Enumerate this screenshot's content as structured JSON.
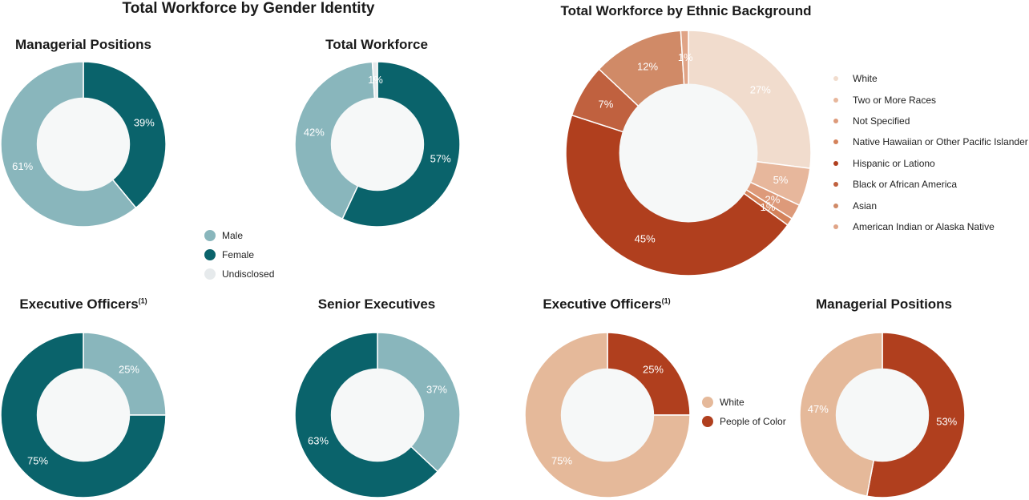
{
  "colors": {
    "male": "#89b6bc",
    "female": "#0a636b",
    "undisclosed": "#e6eaec",
    "white": "#e5b99a",
    "poc": "#b03f1e",
    "hole": "#f6f8f8"
  },
  "headings": {
    "gender": "Total Workforce by Gender Identity",
    "ethnic": "Total Workforce by Ethnic Background"
  },
  "legends": {
    "gender": [
      {
        "label": "Male",
        "color": "#89b6bc"
      },
      {
        "label": "Female",
        "color": "#0a636b"
      },
      {
        "label": "Undisclosed",
        "color": "#e6eaec"
      }
    ],
    "ethnic": [
      {
        "label": "White",
        "color": "#f1dccd"
      },
      {
        "label": "Two or More Races",
        "color": "#e7b79c"
      },
      {
        "label": "Not Specified",
        "color": "#dd9a7a"
      },
      {
        "label": "Native Hawaiian or Other Pacific Islander",
        "color": "#d4825a"
      },
      {
        "label": "Hispanic or Lationo",
        "color": "#b03f1e"
      },
      {
        "label": "Black or African America",
        "color": "#c0613f"
      },
      {
        "label": "Asian",
        "color": "#d08a67"
      },
      {
        "label": "American Indian or Alaska Native",
        "color": "#e0a487"
      }
    ],
    "race": [
      {
        "label": "White",
        "color": "#e5b99a"
      },
      {
        "label": "People of Color",
        "color": "#b03f1e"
      }
    ]
  },
  "chart_data": [
    {
      "id": "gender-managerial",
      "type": "pie",
      "title": "Managerial Positions",
      "footnote": "",
      "slices": [
        {
          "name": "Female",
          "value": 39,
          "label": "39%",
          "color": "#0a636b",
          "text_color": "#ffffff"
        },
        {
          "name": "Male",
          "value": 61,
          "label": "61%",
          "color": "#89b6bc",
          "text_color": "#ffffff"
        }
      ]
    },
    {
      "id": "gender-total",
      "type": "pie",
      "title": "Total Workforce",
      "footnote": "",
      "slices": [
        {
          "name": "Female",
          "value": 57,
          "label": "57%",
          "color": "#0a636b",
          "text_color": "#ffffff"
        },
        {
          "name": "Male",
          "value": 42,
          "label": "42%",
          "color": "#89b6bc",
          "text_color": "#ffffff"
        },
        {
          "name": "Undisclosed",
          "value": 1,
          "label": "1%",
          "color": "#e6eaec",
          "text_color": "#ffffff"
        }
      ]
    },
    {
      "id": "gender-exec-officers",
      "type": "pie",
      "title": "Executive Officers",
      "footnote": "(1)",
      "slices": [
        {
          "name": "Male",
          "value": 25,
          "label": "25%",
          "color": "#89b6bc",
          "text_color": "#ffffff"
        },
        {
          "name": "Female",
          "value": 75,
          "label": "75%",
          "color": "#0a636b",
          "text_color": "#ffffff"
        }
      ]
    },
    {
      "id": "gender-senior-exec",
      "type": "pie",
      "title": "Senior Executives",
      "footnote": "",
      "slices": [
        {
          "name": "Male",
          "value": 37,
          "label": "37%",
          "color": "#89b6bc",
          "text_color": "#ffffff"
        },
        {
          "name": "Female",
          "value": 63,
          "label": "63%",
          "color": "#0a636b",
          "text_color": "#ffffff"
        }
      ]
    },
    {
      "id": "ethnic-total",
      "type": "pie",
      "title": "",
      "footnote": "",
      "slices": [
        {
          "name": "White",
          "value": 27,
          "label": "27%",
          "color": "#f1dccd",
          "text_color": "#ffffff"
        },
        {
          "name": "Two or More Races",
          "value": 5,
          "label": "5%",
          "color": "#e7b79c",
          "text_color": "#ffffff"
        },
        {
          "name": "Not Specified",
          "value": 2,
          "label": "2%",
          "color": "#dd9a7a",
          "text_color": "#ffffff"
        },
        {
          "name": "Native Hawaiian or Other Pacific Islander",
          "value": 1,
          "label": "1%",
          "color": "#d4825a",
          "text_color": "#ffffff"
        },
        {
          "name": "Hispanic or Lationo",
          "value": 45,
          "label": "45%",
          "color": "#b03f1e",
          "text_color": "#ffffff"
        },
        {
          "name": "Black or African America",
          "value": 7,
          "label": "7%",
          "color": "#c0613f",
          "text_color": "#ffffff"
        },
        {
          "name": "Asian",
          "value": 12,
          "label": "12%",
          "color": "#d08a67",
          "text_color": "#ffffff"
        },
        {
          "name": "American Indian or Alaska Native",
          "value": 1,
          "label": "1%",
          "color": "#e0a487",
          "text_color": "#ffffff"
        }
      ]
    },
    {
      "id": "race-exec-officers",
      "type": "pie",
      "title": "Executive Officers",
      "footnote": "(1)",
      "slices": [
        {
          "name": "People of Color",
          "value": 25,
          "label": "25%",
          "color": "#b03f1e",
          "text_color": "#ffffff"
        },
        {
          "name": "White",
          "value": 75,
          "label": "75%",
          "color": "#e5b99a",
          "text_color": "#ffffff"
        }
      ]
    },
    {
      "id": "race-managerial",
      "type": "pie",
      "title": "Managerial Positions",
      "footnote": "",
      "slices": [
        {
          "name": "People of Color",
          "value": 53,
          "label": "53%",
          "color": "#b03f1e",
          "text_color": "#ffffff"
        },
        {
          "name": "White",
          "value": 47,
          "label": "47%",
          "color": "#e5b99a",
          "text_color": "#ffffff"
        }
      ]
    }
  ]
}
